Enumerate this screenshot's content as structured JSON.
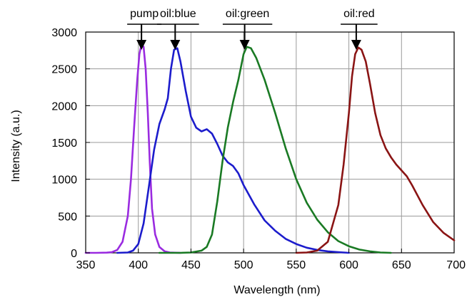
{
  "chart_data": {
    "type": "line",
    "title": "",
    "xlabel": "Wavelength (nm)",
    "ylabel": "Intensity (a.u.)",
    "xlim": [
      350,
      700
    ],
    "ylim": [
      0,
      3000
    ],
    "grid": true,
    "x_ticks": [
      350,
      400,
      450,
      500,
      550,
      600,
      650,
      700
    ],
    "x_tick_labels": [
      "350",
      "400",
      "450",
      "500",
      "550",
      "600",
      "650",
      "700"
    ],
    "y_ticks": [
      0,
      500,
      1000,
      1500,
      2000,
      2500,
      3000
    ],
    "y_tick_labels": [
      "0",
      "500",
      "1000",
      "1500",
      "2000",
      "2500",
      "3000"
    ],
    "series": [
      {
        "name": "pump",
        "color": "#9a2be0",
        "points": [
          [
            350,
            0
          ],
          [
            360,
            0
          ],
          [
            370,
            3
          ],
          [
            375,
            10
          ],
          [
            380,
            40
          ],
          [
            385,
            150
          ],
          [
            390,
            500
          ],
          [
            393,
            1000
          ],
          [
            396,
            1700
          ],
          [
            399,
            2350
          ],
          [
            401,
            2700
          ],
          [
            403,
            2830
          ],
          [
            405,
            2800
          ],
          [
            407,
            2500
          ],
          [
            409,
            1900
          ],
          [
            411,
            1200
          ],
          [
            413,
            600
          ],
          [
            416,
            250
          ],
          [
            420,
            80
          ],
          [
            425,
            20
          ],
          [
            430,
            5
          ],
          [
            440,
            0
          ]
        ]
      },
      {
        "name": "oil:blue",
        "color": "#1c1ccc",
        "points": [
          [
            380,
            0
          ],
          [
            390,
            5
          ],
          [
            395,
            30
          ],
          [
            400,
            120
          ],
          [
            405,
            400
          ],
          [
            410,
            900
          ],
          [
            415,
            1400
          ],
          [
            420,
            1750
          ],
          [
            425,
            1950
          ],
          [
            428,
            2100
          ],
          [
            431,
            2500
          ],
          [
            434,
            2760
          ],
          [
            437,
            2780
          ],
          [
            440,
            2600
          ],
          [
            445,
            2200
          ],
          [
            450,
            1850
          ],
          [
            455,
            1700
          ],
          [
            460,
            1650
          ],
          [
            465,
            1680
          ],
          [
            470,
            1620
          ],
          [
            475,
            1480
          ],
          [
            480,
            1320
          ],
          [
            485,
            1230
          ],
          [
            490,
            1180
          ],
          [
            495,
            1080
          ],
          [
            500,
            920
          ],
          [
            510,
            660
          ],
          [
            520,
            440
          ],
          [
            530,
            300
          ],
          [
            540,
            190
          ],
          [
            550,
            120
          ],
          [
            560,
            70
          ],
          [
            570,
            40
          ],
          [
            580,
            20
          ],
          [
            590,
            10
          ],
          [
            600,
            0
          ]
        ]
      },
      {
        "name": "oil:green",
        "color": "#1a7a24",
        "points": [
          [
            420,
            0
          ],
          [
            440,
            0
          ],
          [
            450,
            5
          ],
          [
            460,
            30
          ],
          [
            465,
            80
          ],
          [
            470,
            250
          ],
          [
            475,
            700
          ],
          [
            480,
            1250
          ],
          [
            485,
            1700
          ],
          [
            490,
            2050
          ],
          [
            495,
            2350
          ],
          [
            500,
            2700
          ],
          [
            503,
            2800
          ],
          [
            507,
            2780
          ],
          [
            512,
            2650
          ],
          [
            520,
            2350
          ],
          [
            530,
            1900
          ],
          [
            540,
            1420
          ],
          [
            550,
            1000
          ],
          [
            560,
            680
          ],
          [
            570,
            450
          ],
          [
            580,
            280
          ],
          [
            590,
            160
          ],
          [
            600,
            90
          ],
          [
            610,
            45
          ],
          [
            620,
            20
          ],
          [
            630,
            5
          ],
          [
            640,
            0
          ]
        ]
      },
      {
        "name": "oil:red",
        "color": "#8a1414",
        "points": [
          [
            550,
            0
          ],
          [
            560,
            5
          ],
          [
            570,
            30
          ],
          [
            580,
            150
          ],
          [
            590,
            650
          ],
          [
            595,
            1200
          ],
          [
            600,
            1900
          ],
          [
            603,
            2400
          ],
          [
            606,
            2700
          ],
          [
            609,
            2790
          ],
          [
            612,
            2760
          ],
          [
            616,
            2600
          ],
          [
            620,
            2300
          ],
          [
            625,
            1900
          ],
          [
            630,
            1600
          ],
          [
            635,
            1420
          ],
          [
            640,
            1300
          ],
          [
            645,
            1200
          ],
          [
            650,
            1120
          ],
          [
            655,
            1040
          ],
          [
            660,
            920
          ],
          [
            670,
            650
          ],
          [
            680,
            420
          ],
          [
            690,
            270
          ],
          [
            700,
            170
          ]
        ]
      }
    ],
    "annotations": [
      {
        "label": "pump",
        "x": 403
      },
      {
        "label": "oil:blue",
        "x": 435
      },
      {
        "label": "oil:green",
        "x": 501
      },
      {
        "label": "oil:red",
        "x": 607
      }
    ]
  }
}
